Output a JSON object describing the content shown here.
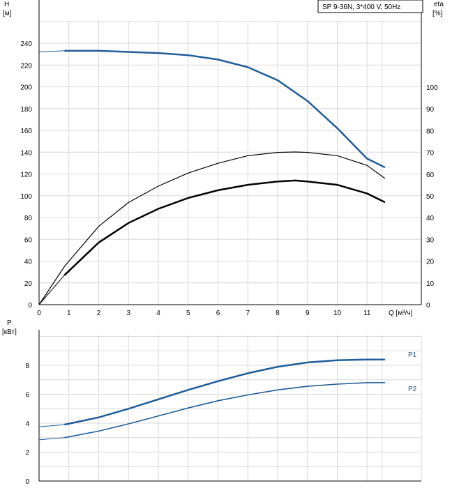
{
  "chart_data": [
    {
      "type": "line",
      "title": "SP 9-36N, 3*400 V, 50Hz",
      "xlabel": "Q [м³/ч]",
      "ylabel": "H [м]",
      "y2label": "eta [%]",
      "xlim": [
        0,
        12.5
      ],
      "ylim": [
        0,
        260
      ],
      "y2lim": [
        0,
        130
      ],
      "x_ticks": [
        0,
        1,
        2,
        3,
        4,
        5,
        6,
        7,
        8,
        9,
        10,
        11
      ],
      "y_ticks": [
        0,
        20,
        40,
        60,
        80,
        100,
        120,
        140,
        160,
        180,
        200,
        220,
        240
      ],
      "y2_ticks": [
        0,
        10,
        20,
        30,
        40,
        50,
        60,
        70,
        80,
        90,
        100
      ],
      "grid": true,
      "series": [
        {
          "axis": "y",
          "color": "#1f5c99",
          "x": [
            0,
            0.85,
            1.5,
            2,
            3,
            4,
            5,
            6,
            7,
            8,
            9,
            10,
            11,
            11.6
          ],
          "y": [
            232,
            233,
            233,
            233,
            232,
            231,
            229,
            225,
            218,
            206,
            187,
            162,
            134,
            126
          ]
        },
        {
          "axis": "y2",
          "color": "#000000",
          "x": [
            0,
            0.85,
            1,
            2,
            3,
            4,
            5,
            6,
            7,
            8,
            8.6,
            9,
            10,
            11,
            11.6
          ],
          "y": [
            0,
            17.5,
            20,
            36,
            47,
            54.5,
            60.5,
            65,
            68.5,
            70,
            70.2,
            70,
            68.5,
            64,
            58
          ]
        },
        {
          "axis": "y",
          "color": "#000000",
          "x": [
            0,
            0.85,
            2,
            3,
            4,
            5,
            6,
            7,
            8,
            8.6,
            9,
            10,
            11,
            11.6
          ],
          "y": [
            0,
            27,
            57,
            75,
            88,
            98,
            105,
            110,
            113,
            114,
            113,
            110,
            102,
            94
          ]
        }
      ]
    },
    {
      "type": "line",
      "xlabel": "",
      "ylabel": "P [кВт]",
      "xlim": [
        0,
        12.5
      ],
      "ylim": [
        0,
        10
      ],
      "x_ticks": [
        0,
        1,
        2,
        3,
        4,
        5,
        6,
        7,
        8,
        9,
        10,
        11
      ],
      "y_ticks": [
        0,
        2,
        4,
        6,
        8
      ],
      "grid": true,
      "series": [
        {
          "name": "P1",
          "color": "#1f5c99",
          "x": [
            0,
            0.85,
            2,
            3,
            4,
            5,
            6,
            7,
            8,
            9,
            10,
            11,
            11.6
          ],
          "y": [
            3.75,
            3.9,
            4.4,
            5.0,
            5.65,
            6.3,
            6.9,
            7.45,
            7.9,
            8.2,
            8.35,
            8.4,
            8.4
          ]
        },
        {
          "name": "P2",
          "color": "#1f5c99",
          "x": [
            0,
            0.85,
            2,
            3,
            4,
            5,
            6,
            7,
            8,
            9,
            10,
            11,
            11.6
          ],
          "y": [
            2.85,
            3.0,
            3.45,
            3.95,
            4.5,
            5.05,
            5.55,
            5.95,
            6.3,
            6.55,
            6.7,
            6.8,
            6.8
          ]
        }
      ]
    }
  ]
}
